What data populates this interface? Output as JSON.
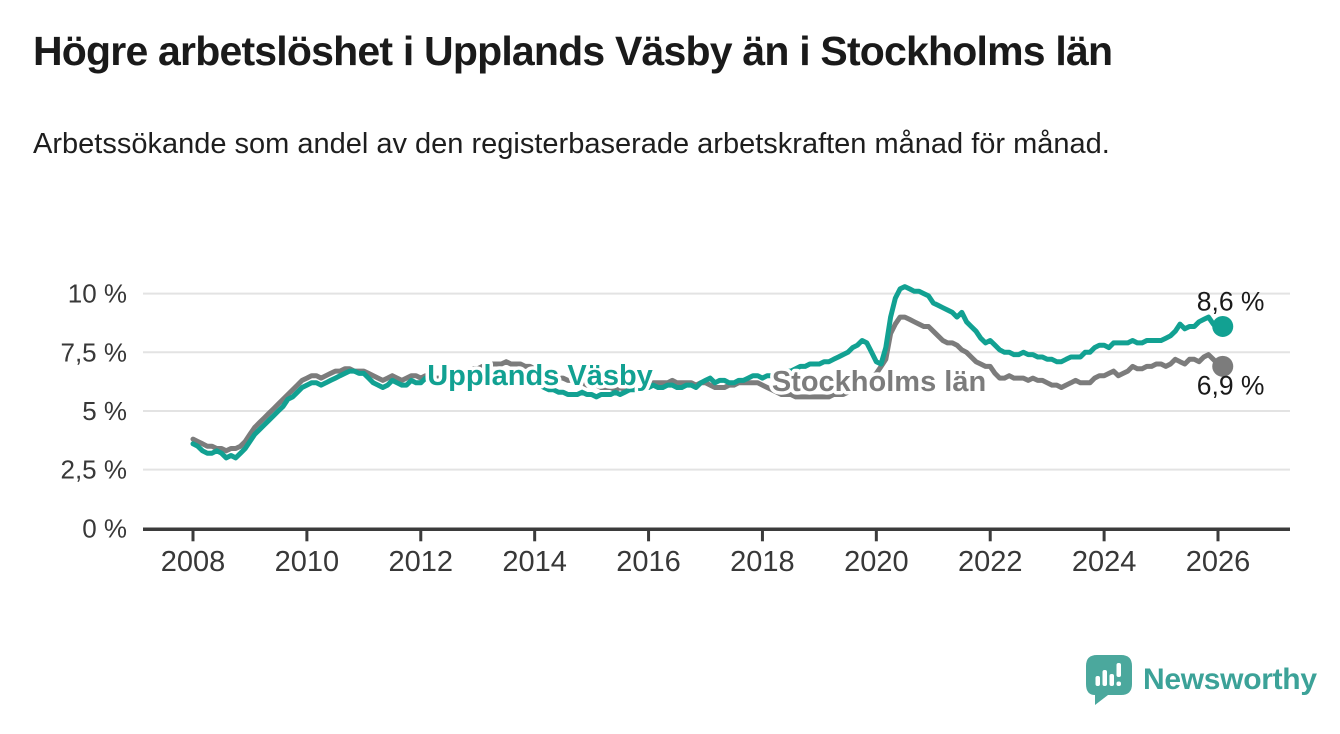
{
  "page": {
    "title": "Högre arbetslöshet i Upplands Väsby än i Stockholms län",
    "subtitle": "Arbetssökande som andel av den registerbaserade arbetskraften månad för månad."
  },
  "branding": {
    "name": "Newsworthy",
    "logo_icon": "bar-chart-speech-bubble-icon",
    "logo_color": "#4ba89d",
    "text_color": "#3ca298"
  },
  "colors": {
    "background": "#ffffff",
    "title_text": "#1a1a1a",
    "axis_text": "#383838",
    "axis_line": "#3b3b3b",
    "gridline": "#e3e3e3",
    "end_label_text": "#1a1a1a"
  },
  "chart_data": {
    "type": "line",
    "title": "Högre arbetslöshet i Upplands Väsby än i Stockholms län",
    "subtitle": "Arbetssökande som andel av den registerbaserade arbetskraften månad för månad.",
    "unit": "%",
    "x_interval": "monthly",
    "x_range": [
      "2008-01",
      "2026-02"
    ],
    "grid": "horizontal",
    "legend": "inline-labels-on-lines",
    "x_axis": {
      "tick_years": [
        2008,
        2010,
        2012,
        2014,
        2016,
        2018,
        2020,
        2022,
        2024,
        2026
      ],
      "tick_labels": [
        "2008",
        "2010",
        "2012",
        "2014",
        "2016",
        "2018",
        "2020",
        "2022",
        "2024",
        "2026"
      ]
    },
    "y_axis": {
      "tick_values": [
        0,
        2.5,
        5,
        7.5,
        10
      ],
      "tick_labels": [
        "0 %",
        "2,5 %",
        "5 %",
        "7,5 %",
        "10 %"
      ],
      "range": [
        0,
        10.8
      ]
    },
    "series": [
      {
        "name": "Upplands Väsby",
        "color": "#12a192",
        "end_value": 8.6,
        "end_label": "8,6 %",
        "end_label_side": "above",
        "label_pos": {
          "x": 540,
          "y": 385
        },
        "values": [
          3.6,
          3.5,
          3.3,
          3.2,
          3.2,
          3.3,
          3.2,
          3.0,
          3.1,
          3.0,
          3.2,
          3.4,
          3.7,
          4.0,
          4.2,
          4.4,
          4.6,
          4.8,
          5.0,
          5.2,
          5.5,
          5.6,
          5.8,
          6.0,
          6.1,
          6.2,
          6.2,
          6.1,
          6.2,
          6.3,
          6.4,
          6.5,
          6.6,
          6.7,
          6.7,
          6.6,
          6.6,
          6.4,
          6.2,
          6.1,
          6.0,
          6.1,
          6.3,
          6.2,
          6.1,
          6.1,
          6.3,
          6.2,
          6.2,
          6.4,
          6.3,
          6.2,
          6.1,
          6.2,
          6.3,
          6.4,
          6.3,
          6.3,
          6.4,
          6.5,
          6.5,
          6.6,
          6.6,
          6.5,
          6.5,
          6.4,
          6.4,
          6.5,
          6.4,
          6.3,
          6.2,
          6.2,
          6.1,
          6.1,
          6.0,
          5.9,
          5.9,
          5.8,
          5.8,
          5.7,
          5.7,
          5.7,
          5.8,
          5.7,
          5.7,
          5.6,
          5.7,
          5.7,
          5.7,
          5.8,
          5.7,
          5.8,
          5.9,
          5.9,
          6.0,
          6.0,
          6.0,
          6.1,
          6.0,
          6.0,
          6.1,
          6.1,
          6.0,
          6.0,
          6.1,
          6.1,
          6.0,
          6.2,
          6.3,
          6.4,
          6.2,
          6.3,
          6.3,
          6.2,
          6.2,
          6.3,
          6.3,
          6.4,
          6.5,
          6.5,
          6.4,
          6.5,
          6.5,
          6.6,
          6.6,
          6.7,
          6.7,
          6.8,
          6.9,
          6.9,
          7.0,
          7.0,
          7.0,
          7.1,
          7.1,
          7.2,
          7.3,
          7.4,
          7.5,
          7.7,
          7.8,
          8.0,
          7.9,
          7.5,
          7.1,
          7.0,
          7.7,
          9.0,
          9.8,
          10.2,
          10.3,
          10.2,
          10.1,
          10.1,
          10.0,
          9.9,
          9.6,
          9.5,
          9.4,
          9.3,
          9.2,
          9.0,
          9.2,
          8.8,
          8.6,
          8.4,
          8.1,
          7.9,
          8.0,
          7.8,
          7.6,
          7.5,
          7.5,
          7.4,
          7.4,
          7.5,
          7.4,
          7.4,
          7.3,
          7.3,
          7.2,
          7.2,
          7.1,
          7.1,
          7.2,
          7.3,
          7.3,
          7.3,
          7.5,
          7.5,
          7.7,
          7.8,
          7.8,
          7.7,
          7.9,
          7.9,
          7.9,
          7.9,
          8.0,
          7.9,
          7.9,
          8.0,
          8.0,
          8.0,
          8.0,
          8.1,
          8.2,
          8.4,
          8.7,
          8.5,
          8.6,
          8.6,
          8.8,
          8.9,
          9.0,
          8.7,
          8.5,
          8.6
        ]
      },
      {
        "name": "Stockholms län",
        "color": "#7c7c7c",
        "end_value": 6.9,
        "end_label": "6,9 %",
        "end_label_side": "below",
        "label_pos": {
          "x": 879,
          "y": 391
        },
        "values": [
          3.8,
          3.7,
          3.6,
          3.5,
          3.5,
          3.4,
          3.4,
          3.3,
          3.4,
          3.4,
          3.5,
          3.7,
          4.0,
          4.3,
          4.5,
          4.7,
          4.9,
          5.1,
          5.3,
          5.5,
          5.7,
          5.9,
          6.1,
          6.3,
          6.4,
          6.5,
          6.5,
          6.4,
          6.5,
          6.6,
          6.7,
          6.7,
          6.8,
          6.8,
          6.7,
          6.7,
          6.7,
          6.6,
          6.5,
          6.4,
          6.3,
          6.4,
          6.5,
          6.4,
          6.3,
          6.4,
          6.5,
          6.5,
          6.4,
          6.5,
          6.5,
          6.4,
          6.4,
          6.5,
          6.6,
          6.6,
          6.5,
          6.6,
          6.7,
          6.8,
          6.8,
          6.9,
          6.9,
          7.0,
          7.0,
          7.0,
          7.1,
          7.0,
          7.0,
          7.0,
          6.9,
          6.9,
          6.8,
          6.7,
          6.6,
          6.5,
          6.5,
          6.4,
          6.4,
          6.3,
          6.3,
          6.2,
          6.2,
          6.1,
          6.1,
          6.1,
          6.0,
          6.0,
          6.0,
          5.9,
          6.0,
          5.9,
          5.9,
          6.0,
          6.0,
          5.9,
          6.1,
          6.2,
          6.2,
          6.2,
          6.2,
          6.3,
          6.2,
          6.2,
          6.2,
          6.2,
          6.1,
          6.2,
          6.2,
          6.1,
          6.0,
          6.0,
          6.0,
          6.1,
          6.1,
          6.2,
          6.2,
          6.2,
          6.2,
          6.2,
          6.1,
          6.0,
          5.9,
          5.8,
          5.7,
          5.7,
          5.7,
          5.6,
          5.6,
          5.6,
          5.6,
          5.6,
          5.6,
          5.6,
          5.6,
          5.7,
          5.7,
          5.7,
          5.8,
          5.9,
          6.0,
          6.1,
          6.2,
          6.4,
          6.6,
          6.9,
          7.2,
          8.3,
          8.7,
          9.0,
          9.0,
          8.9,
          8.8,
          8.7,
          8.6,
          8.6,
          8.4,
          8.2,
          8.0,
          7.9,
          7.9,
          7.8,
          7.6,
          7.5,
          7.3,
          7.1,
          7.0,
          6.9,
          6.9,
          6.6,
          6.4,
          6.4,
          6.5,
          6.4,
          6.4,
          6.4,
          6.3,
          6.4,
          6.3,
          6.3,
          6.2,
          6.1,
          6.1,
          6.0,
          6.1,
          6.2,
          6.3,
          6.2,
          6.2,
          6.2,
          6.4,
          6.5,
          6.5,
          6.6,
          6.7,
          6.5,
          6.6,
          6.7,
          6.9,
          6.8,
          6.8,
          6.9,
          6.9,
          7.0,
          7.0,
          6.9,
          7.0,
          7.2,
          7.1,
          7.0,
          7.2,
          7.2,
          7.1,
          7.3,
          7.4,
          7.2,
          7.0,
          6.9
        ]
      }
    ]
  }
}
